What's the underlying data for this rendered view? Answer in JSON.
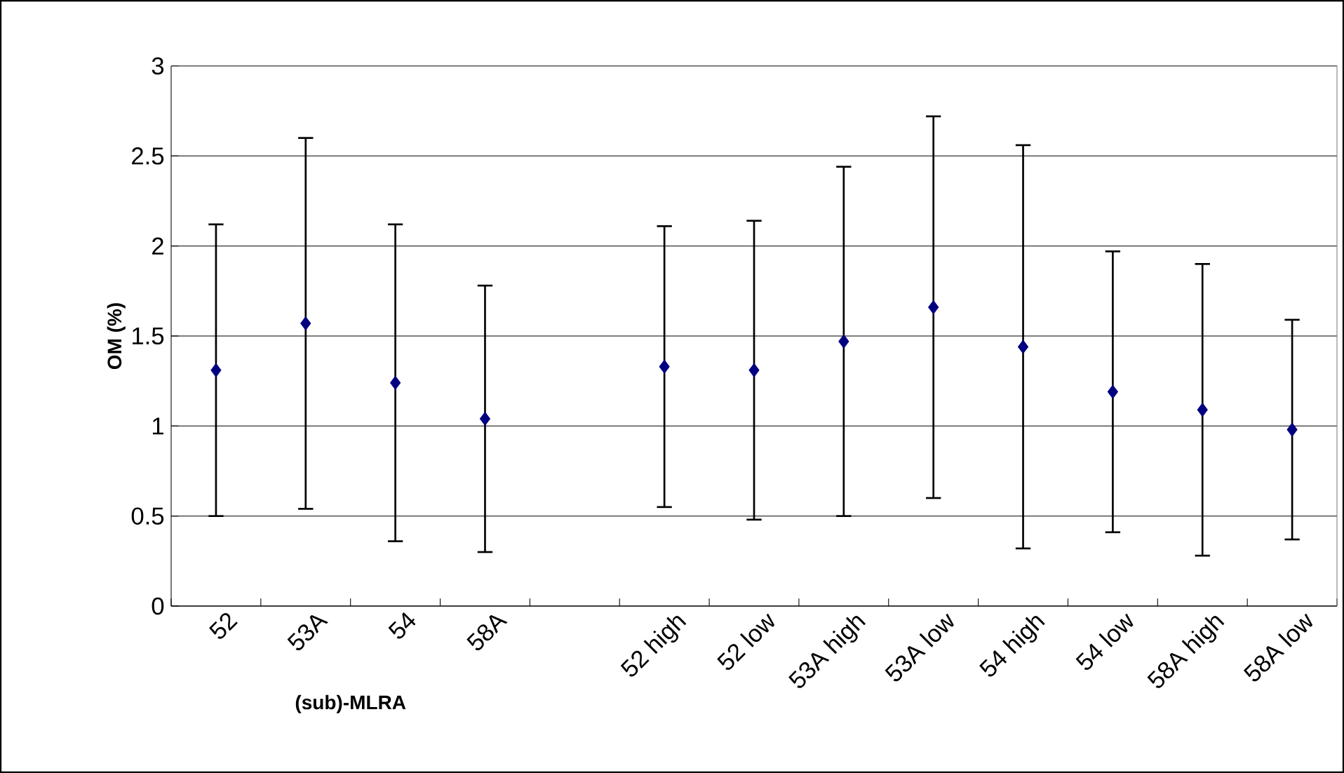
{
  "chart_data": {
    "type": "scatter",
    "xlabel": "(sub)-MLRA",
    "ylabel": "OM (%)",
    "categories": [
      "52",
      "53A",
      "54",
      "58A",
      null,
      "52  high",
      "52  low",
      "53A high",
      "53A low",
      "54  high",
      "54  low",
      "58A high",
      "58A low"
    ],
    "values": [
      1.31,
      1.57,
      1.24,
      1.04,
      null,
      1.33,
      1.31,
      1.47,
      1.66,
      1.44,
      1.19,
      1.09,
      0.98
    ],
    "errors": [
      0.81,
      1.03,
      0.88,
      0.74,
      null,
      0.78,
      0.83,
      0.97,
      1.06,
      1.12,
      0.78,
      0.81,
      0.61
    ],
    "color": "#000080",
    "marker": "diamond",
    "ylim": [
      0,
      3
    ],
    "yticks": [
      0,
      0.5,
      1,
      1.5,
      2,
      2.5,
      3
    ],
    "grid": "y"
  }
}
